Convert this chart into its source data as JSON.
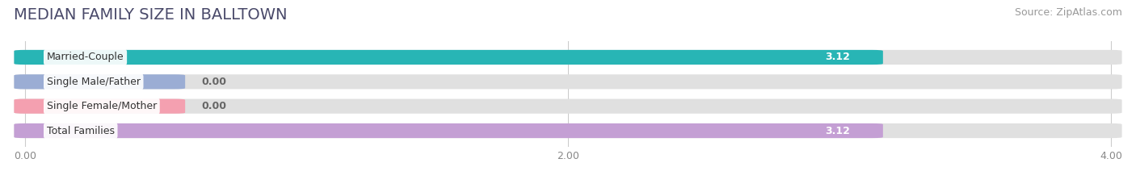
{
  "title": "MEDIAN FAMILY SIZE IN BALLTOWN",
  "source": "Source: ZipAtlas.com",
  "categories": [
    "Married-Couple",
    "Single Male/Father",
    "Single Female/Mother",
    "Total Families"
  ],
  "values": [
    3.12,
    0.0,
    0.0,
    3.12
  ],
  "bar_colors": [
    "#28b5b5",
    "#9badd4",
    "#f4a0b0",
    "#c49fd4"
  ],
  "bar_bg_color": "#e0e0e0",
  "xlim_max": 4.0,
  "xticks": [
    0.0,
    2.0,
    4.0
  ],
  "xtick_labels": [
    "0.00",
    "2.00",
    "4.00"
  ],
  "background_color": "#ffffff",
  "bar_height": 0.52,
  "value_color_white": "#ffffff",
  "value_color_dark": "#666666",
  "title_fontsize": 14,
  "source_fontsize": 9,
  "label_fontsize": 9,
  "value_fontsize": 9,
  "tick_fontsize": 9,
  "title_color": "#4a4a6a",
  "source_color": "#999999"
}
